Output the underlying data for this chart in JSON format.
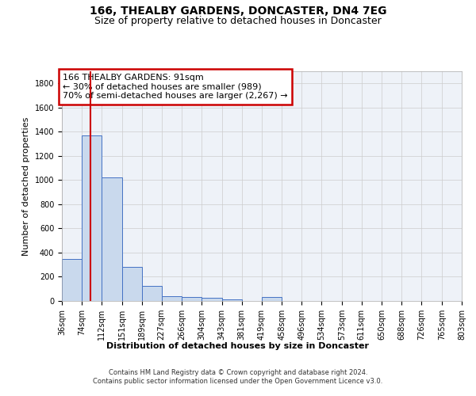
{
  "title": "166, THEALBY GARDENS, DONCASTER, DN4 7EG",
  "subtitle": "Size of property relative to detached houses in Doncaster",
  "xlabel": "Distribution of detached houses by size in Doncaster",
  "ylabel": "Number of detached properties",
  "footer_line1": "Contains HM Land Registry data © Crown copyright and database right 2024.",
  "footer_line2": "Contains public sector information licensed under the Open Government Licence v3.0.",
  "annotation_line1": "166 THEALBY GARDENS: 91sqm",
  "annotation_line2": "← 30% of detached houses are smaller (989)",
  "annotation_line3": "70% of semi-detached houses are larger (2,267) →",
  "bar_edges": [
    36,
    74,
    112,
    151,
    189,
    227,
    266,
    304,
    343,
    381,
    419,
    458,
    496,
    534,
    573,
    611,
    650,
    688,
    726,
    765,
    803
  ],
  "bar_heights": [
    350,
    1370,
    1020,
    285,
    125,
    40,
    35,
    25,
    15,
    0,
    30,
    0,
    0,
    0,
    0,
    0,
    0,
    0,
    0,
    0
  ],
  "bar_color": "#c9d9ed",
  "bar_edge_color": "#4472c4",
  "red_line_x": 91,
  "ylim": [
    0,
    1900
  ],
  "yticks": [
    0,
    200,
    400,
    600,
    800,
    1000,
    1200,
    1400,
    1600,
    1800
  ],
  "annotation_box_color": "#ffffff",
  "annotation_box_edge_color": "#cc0000",
  "red_line_color": "#cc0000",
  "title_fontsize": 10,
  "subtitle_fontsize": 9,
  "axis_fontsize": 8,
  "tick_fontsize": 7,
  "footer_fontsize": 6,
  "annotation_fontsize": 8
}
